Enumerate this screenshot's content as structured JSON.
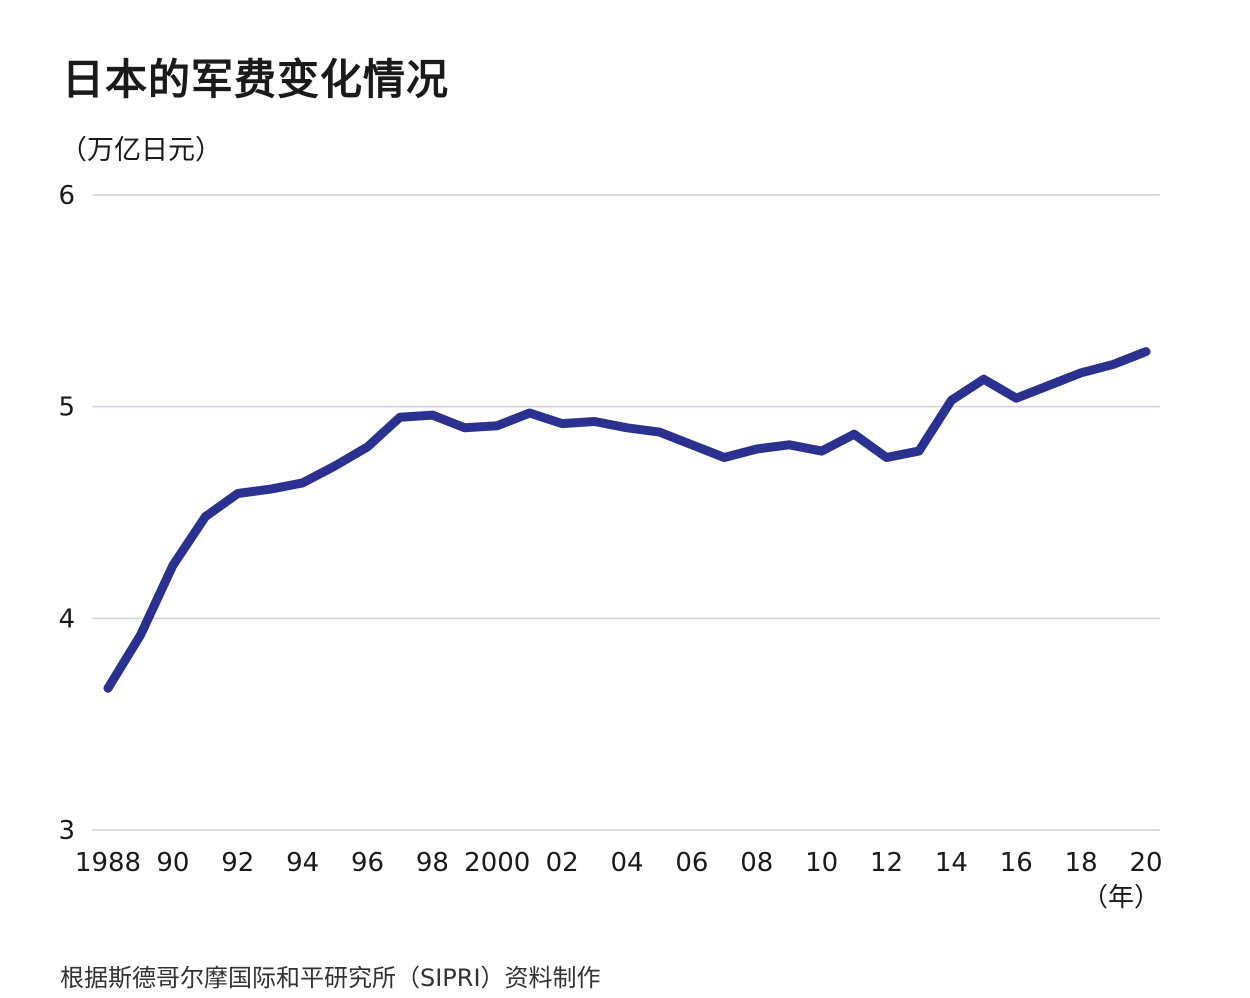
{
  "title": "日本的军费变化情况",
  "unit_label": "（万亿日元）",
  "x_unit_label": "（年）",
  "source": "根据斯德哥尔摩国际和平研究所（SIPRI）资料制作",
  "colors": {
    "line": "#2b3190",
    "grid": "#cfd3dc",
    "text": "#1a1a1a"
  },
  "chart_data": {
    "type": "line",
    "title": "日本的军费变化情况",
    "ylabel": "（万亿日元）",
    "xlabel": "（年）",
    "ylim": [
      3,
      6
    ],
    "xlim": [
      1988,
      2020
    ],
    "grid": true,
    "y_ticks": [
      {
        "value": 3,
        "label": "3"
      },
      {
        "value": 4,
        "label": "4"
      },
      {
        "value": 5,
        "label": "5"
      },
      {
        "value": 6,
        "label": "6"
      }
    ],
    "x_ticks": [
      {
        "value": 1988,
        "label": "1988"
      },
      {
        "value": 1990,
        "label": "90"
      },
      {
        "value": 1992,
        "label": "92"
      },
      {
        "value": 1994,
        "label": "94"
      },
      {
        "value": 1996,
        "label": "96"
      },
      {
        "value": 1998,
        "label": "98"
      },
      {
        "value": 2000,
        "label": "2000"
      },
      {
        "value": 2002,
        "label": "02"
      },
      {
        "value": 2004,
        "label": "04"
      },
      {
        "value": 2006,
        "label": "06"
      },
      {
        "value": 2008,
        "label": "08"
      },
      {
        "value": 2010,
        "label": "10"
      },
      {
        "value": 2012,
        "label": "12"
      },
      {
        "value": 2014,
        "label": "14"
      },
      {
        "value": 2016,
        "label": "16"
      },
      {
        "value": 2018,
        "label": "18"
      },
      {
        "value": 2020,
        "label": "20"
      }
    ],
    "series": [
      {
        "x": [
          1988,
          1989,
          1990,
          1991,
          1992,
          1993,
          1994,
          1995,
          1996,
          1997,
          1998,
          1999,
          2000,
          2001,
          2002,
          2003,
          2004,
          2005,
          2006,
          2007,
          2008,
          2009,
          2010,
          2011,
          2012,
          2013,
          2014,
          2015,
          2016,
          2017,
          2018,
          2019,
          2020
        ],
        "values": [
          3.67,
          3.92,
          4.25,
          4.48,
          4.59,
          4.61,
          4.64,
          4.72,
          4.81,
          4.95,
          4.96,
          4.9,
          4.91,
          4.97,
          4.92,
          4.93,
          4.9,
          4.88,
          4.82,
          4.76,
          4.8,
          4.82,
          4.79,
          4.87,
          4.76,
          4.79,
          5.03,
          5.13,
          5.04,
          5.1,
          5.16,
          5.2,
          5.26
        ]
      }
    ]
  }
}
